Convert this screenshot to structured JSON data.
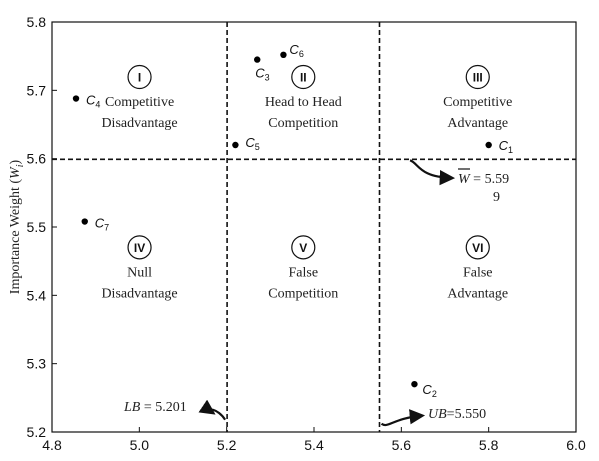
{
  "chart_data": {
    "type": "scatter",
    "title": "",
    "xlabel": "",
    "ylabel": "Importance Weight (W_i)",
    "ylabel_main": "Importance Weight (",
    "ylabel_var": "W",
    "ylabel_sub": "i",
    "ylabel_close": ")",
    "xlim": [
      4.8,
      6.0
    ],
    "ylim": [
      5.2,
      5.8
    ],
    "x_ticks": [
      "4.8",
      "5.0",
      "5.2",
      "5.4",
      "5.6",
      "5.8",
      "6.0"
    ],
    "y_ticks": [
      "5.2",
      "5.3",
      "5.4",
      "5.5",
      "5.6",
      "5.7",
      "5.8"
    ],
    "points": [
      {
        "name": "C1",
        "letter": "C",
        "sub": "1",
        "x": 5.8,
        "y": 5.62
      },
      {
        "name": "C2",
        "letter": "C",
        "sub": "2",
        "x": 5.63,
        "y": 5.27
      },
      {
        "name": "C3",
        "letter": "C",
        "sub": "3",
        "x": 5.27,
        "y": 5.745
      },
      {
        "name": "C4",
        "letter": "C",
        "sub": "4",
        "x": 4.855,
        "y": 5.688
      },
      {
        "name": "C5",
        "letter": "C",
        "sub": "5",
        "x": 5.22,
        "y": 5.62
      },
      {
        "name": "C6",
        "letter": "C",
        "sub": "6",
        "x": 5.33,
        "y": 5.752
      },
      {
        "name": "C7",
        "letter": "C",
        "sub": "7",
        "x": 4.875,
        "y": 5.508
      }
    ],
    "reference_lines": {
      "W_bar": 5.599,
      "LB": 5.201,
      "UB": 5.55
    },
    "annotations": {
      "wbar_label": "W",
      "wbar_value": "= 5.59",
      "wbar_value_cont": "9",
      "lb_label": "LB",
      "lb_value": "= 5.201",
      "ub_label": "UB",
      "ub_value": "=5.550"
    },
    "regions": [
      {
        "numeral": "I",
        "line1": "Competitive",
        "line2": "Disadvantage"
      },
      {
        "numeral": "II",
        "line1": "Head to Head",
        "line2": "Competition"
      },
      {
        "numeral": "III",
        "line1": "Competitive",
        "line2": "Advantage"
      },
      {
        "numeral": "IV",
        "line1": "Null",
        "line2": "Disadvantage"
      },
      {
        "numeral": "V",
        "line1": "False",
        "line2": "Competition"
      },
      {
        "numeral": "VI",
        "line1": "False",
        "line2": "Advantage"
      }
    ],
    "grid": false
  }
}
